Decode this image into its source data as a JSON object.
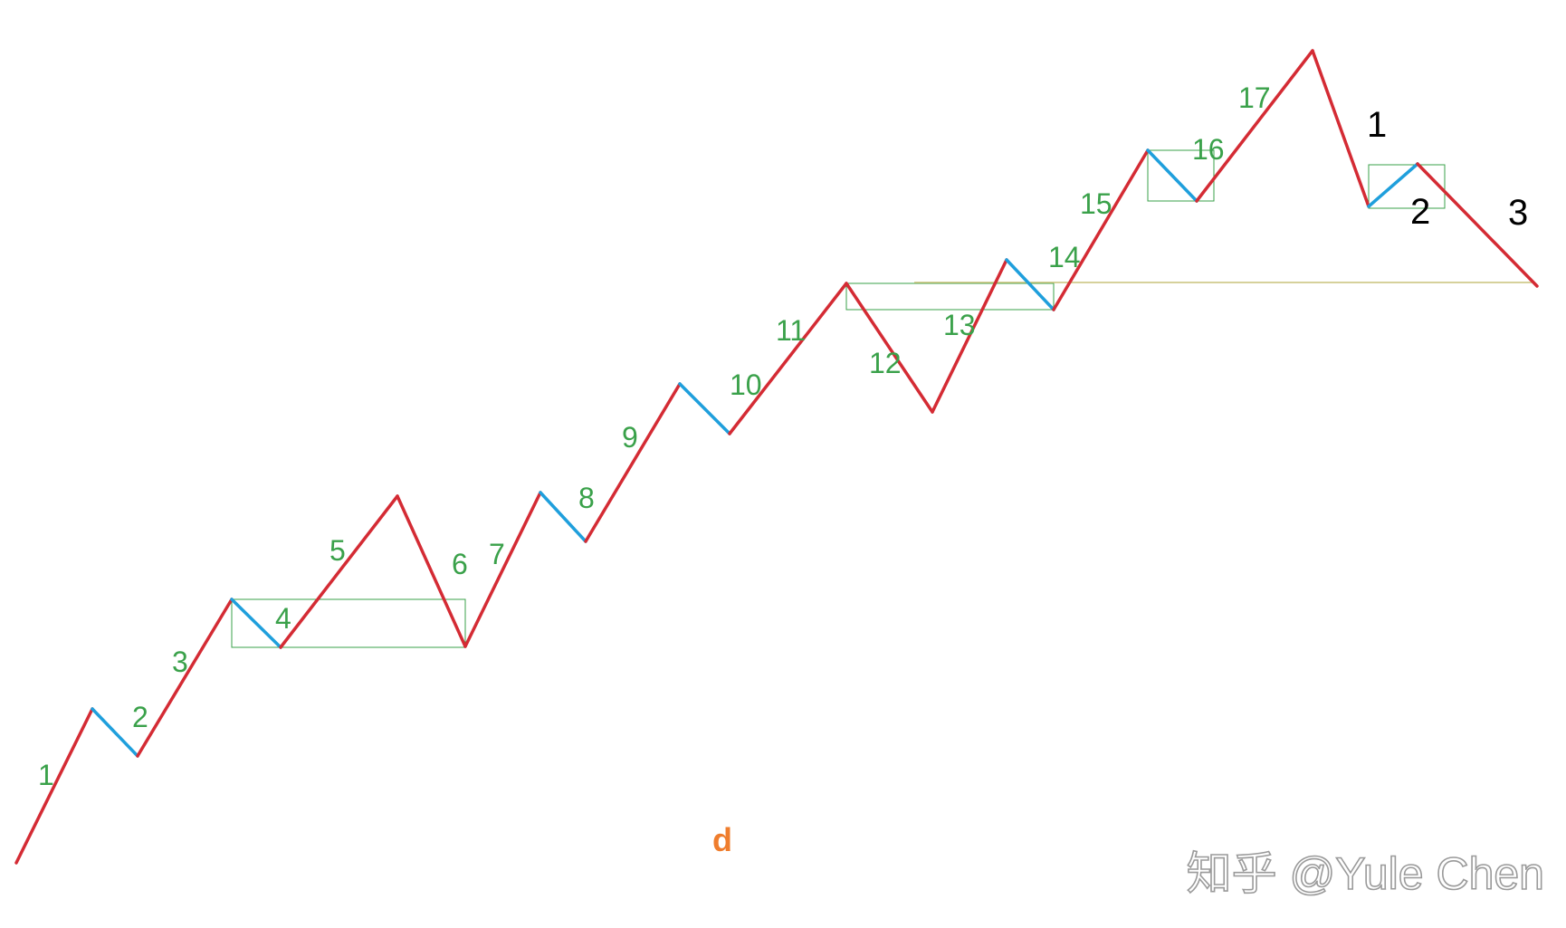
{
  "diagram": {
    "segment_labels": [
      "1",
      "2",
      "3",
      "4",
      "5",
      "6",
      "7",
      "8",
      "9",
      "10",
      "11",
      "12",
      "13",
      "14",
      "15",
      "16",
      "17"
    ],
    "end_labels": [
      "1",
      "2",
      "3"
    ],
    "caption": "d",
    "watermark": "知乎 @Yule Chen"
  },
  "colors": {
    "impulse": "#d42b34",
    "correction": "#1f9fdc",
    "box": "#3aa14a",
    "label": "#3aa14a",
    "end_label": "#000000",
    "caption": "#ef7d2d",
    "reference_line": "#c9c27a",
    "watermark": "#9a9a9a"
  }
}
